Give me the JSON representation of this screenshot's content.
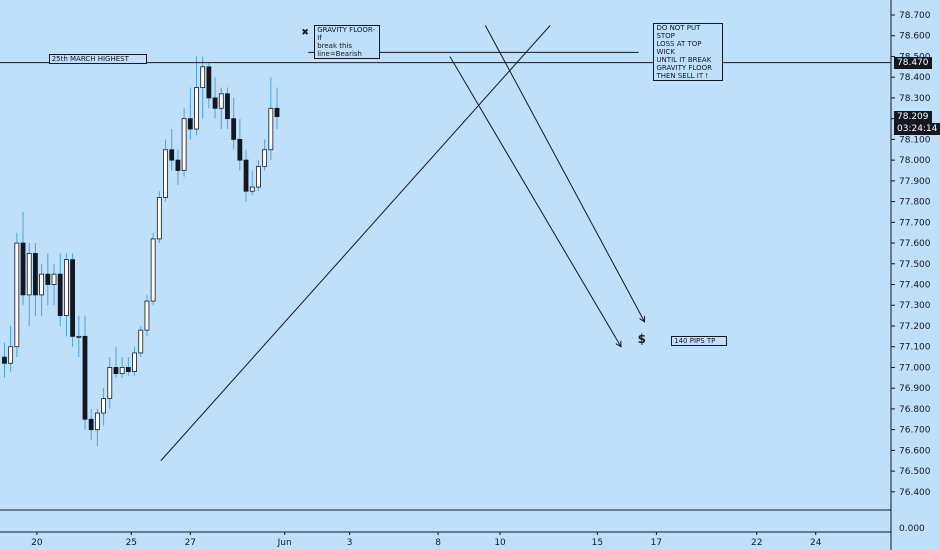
{
  "chart_data": {
    "type": "candlestick",
    "price_scale": {
      "ticks": [
        "78.700",
        "78.600",
        "78.500",
        "78.400",
        "78.300",
        "78.200",
        "78.100",
        "78.000",
        "77.900",
        "77.800",
        "77.700",
        "77.600",
        "77.500",
        "77.400",
        "77.300",
        "77.200",
        "77.100",
        "77.000",
        "76.900",
        "76.800",
        "76.700",
        "76.600",
        "76.500",
        "76.400"
      ],
      "ylim": [
        76.3,
        78.75
      ],
      "sub_scale_label": "0.000"
    },
    "time_axis": {
      "labels": [
        "20",
        "25",
        "27",
        "Jun",
        "3",
        "8",
        "10",
        "15",
        "17",
        "22",
        "24"
      ]
    },
    "price_tags": [
      {
        "label": "78.470",
        "value": 78.47
      },
      {
        "label": "78.209",
        "value": 78.209
      },
      {
        "label": "03:24:14",
        "value": 78.145
      }
    ],
    "horizontal_levels": [
      78.47,
      78.52
    ],
    "candles": [
      {
        "o": 77.05,
        "h": 77.12,
        "l": 76.95,
        "c": 77.02
      },
      {
        "o": 77.02,
        "h": 77.2,
        "l": 76.98,
        "c": 77.1
      },
      {
        "o": 77.1,
        "h": 77.65,
        "l": 77.05,
        "c": 77.6
      },
      {
        "o": 77.6,
        "h": 77.75,
        "l": 77.3,
        "c": 77.35
      },
      {
        "o": 77.35,
        "h": 77.6,
        "l": 77.2,
        "c": 77.55
      },
      {
        "o": 77.55,
        "h": 77.6,
        "l": 77.25,
        "c": 77.35
      },
      {
        "o": 77.35,
        "h": 77.5,
        "l": 77.25,
        "c": 77.45
      },
      {
        "o": 77.45,
        "h": 77.55,
        "l": 77.3,
        "c": 77.4
      },
      {
        "o": 77.4,
        "h": 77.5,
        "l": 77.3,
        "c": 77.45
      },
      {
        "o": 77.45,
        "h": 77.55,
        "l": 77.2,
        "c": 77.25
      },
      {
        "o": 77.25,
        "h": 77.55,
        "l": 77.15,
        "c": 77.52
      },
      {
        "o": 77.52,
        "h": 77.55,
        "l": 77.1,
        "c": 77.15
      },
      {
        "o": 77.15,
        "h": 77.25,
        "l": 77.05,
        "c": 77.15
      },
      {
        "o": 77.15,
        "h": 77.25,
        "l": 76.7,
        "c": 76.75
      },
      {
        "o": 76.75,
        "h": 76.8,
        "l": 76.65,
        "c": 76.7
      },
      {
        "o": 76.7,
        "h": 76.8,
        "l": 76.62,
        "c": 76.78
      },
      {
        "o": 76.78,
        "h": 76.9,
        "l": 76.72,
        "c": 76.85
      },
      {
        "o": 76.85,
        "h": 77.05,
        "l": 76.8,
        "c": 77.0
      },
      {
        "o": 77.0,
        "h": 77.1,
        "l": 76.95,
        "c": 76.97
      },
      {
        "o": 76.97,
        "h": 77.05,
        "l": 76.95,
        "c": 77.0
      },
      {
        "o": 77.0,
        "h": 77.05,
        "l": 76.96,
        "c": 76.98
      },
      {
        "o": 76.98,
        "h": 77.1,
        "l": 76.96,
        "c": 77.07
      },
      {
        "o": 77.07,
        "h": 77.2,
        "l": 77.05,
        "c": 77.18
      },
      {
        "o": 77.18,
        "h": 77.35,
        "l": 77.15,
        "c": 77.32
      },
      {
        "o": 77.32,
        "h": 77.65,
        "l": 77.3,
        "c": 77.62
      },
      {
        "o": 77.62,
        "h": 77.85,
        "l": 77.6,
        "c": 77.82
      },
      {
        "o": 77.82,
        "h": 78.1,
        "l": 77.8,
        "c": 78.05
      },
      {
        "o": 78.05,
        "h": 78.15,
        "l": 77.95,
        "c": 78.0
      },
      {
        "o": 78.0,
        "h": 78.05,
        "l": 77.88,
        "c": 77.95
      },
      {
        "o": 77.95,
        "h": 78.25,
        "l": 77.92,
        "c": 78.2
      },
      {
        "o": 78.2,
        "h": 78.35,
        "l": 78.1,
        "c": 78.15
      },
      {
        "o": 78.15,
        "h": 78.5,
        "l": 78.12,
        "c": 78.35
      },
      {
        "o": 78.35,
        "h": 78.5,
        "l": 78.2,
        "c": 78.45
      },
      {
        "o": 78.45,
        "h": 78.47,
        "l": 78.25,
        "c": 78.3
      },
      {
        "o": 78.3,
        "h": 78.4,
        "l": 78.2,
        "c": 78.25
      },
      {
        "o": 78.25,
        "h": 78.35,
        "l": 78.15,
        "c": 78.32
      },
      {
        "o": 78.32,
        "h": 78.35,
        "l": 78.15,
        "c": 78.2
      },
      {
        "o": 78.2,
        "h": 78.3,
        "l": 78.05,
        "c": 78.1
      },
      {
        "o": 78.1,
        "h": 78.2,
        "l": 77.95,
        "c": 78.0
      },
      {
        "o": 78.0,
        "h": 78.05,
        "l": 77.8,
        "c": 77.85
      },
      {
        "o": 77.85,
        "h": 77.95,
        "l": 77.83,
        "c": 77.87
      },
      {
        "o": 77.87,
        "h": 78.0,
        "l": 77.85,
        "c": 77.97
      },
      {
        "o": 77.97,
        "h": 78.1,
        "l": 77.95,
        "c": 78.05
      },
      {
        "o": 78.05,
        "h": 78.4,
        "l": 78.0,
        "c": 78.25
      },
      {
        "o": 78.25,
        "h": 78.35,
        "l": 78.15,
        "c": 78.21
      }
    ],
    "drawings": {
      "trendlines": [
        {
          "t1": 27.0,
          "p1": 76.55,
          "t2": 93.0,
          "p2": 78.65
        },
        {
          "t1": 76.0,
          "p1": 78.5,
          "t2": 105.0,
          "p2": 77.1
        },
        {
          "t1": 82.0,
          "p1": 78.65,
          "t2": 109.0,
          "p2": 77.22
        }
      ],
      "gravity_floor": {
        "t1": 52.0,
        "t2": 108.0,
        "p": 78.52
      },
      "icons": [
        {
          "name": "x-mark",
          "glyph": "✖",
          "t": 51.5,
          "p": 78.6
        },
        {
          "name": "dollar",
          "glyph": "$",
          "t": 108.5,
          "p": 77.13
        }
      ]
    },
    "notes": [
      {
        "name": "note-25th-march",
        "text": "25th MARCH HIGHEST",
        "t": 8.0,
        "p": 78.51,
        "w": 98
      },
      {
        "name": "note-gravity-floor",
        "text": "GRAVITY FLOOR- If\nbreak this\nline=Bearish",
        "t": 53.0,
        "p": 78.65,
        "w": 66
      },
      {
        "name": "note-stop-loss",
        "text": "DO NOT PUT STOP\nLOSS AT TOP WICK\nUNTIL IT BREAK\nGRAVITY FLOOR\nTHEN SELL IT !",
        "t": 110.5,
        "p": 78.66,
        "w": 70
      },
      {
        "name": "note-140-pips",
        "text": "140 PIPS TP",
        "t": 113.5,
        "p": 77.15,
        "w": 56
      }
    ]
  }
}
